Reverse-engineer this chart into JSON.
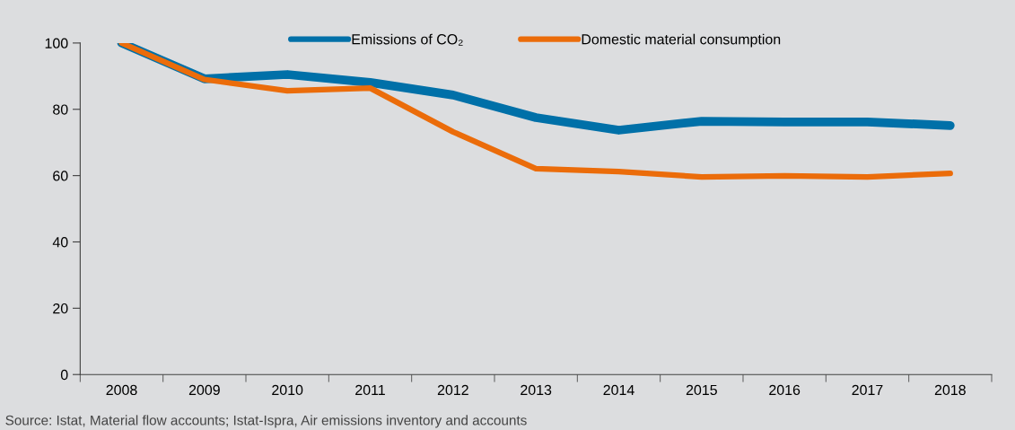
{
  "chart_data": {
    "type": "line",
    "categories": [
      "2008",
      "2009",
      "2010",
      "2011",
      "2012",
      "2013",
      "2014",
      "2015",
      "2016",
      "2017",
      "2018"
    ],
    "series": [
      {
        "name": "Emissions of CO₂",
        "color": "#0070a8",
        "values": [
          100,
          89.2,
          90.5,
          88.1,
          84.3,
          77.5,
          73.7,
          76.4,
          76.2,
          76.2,
          75.1
        ]
      },
      {
        "name": "Domestic material consumption",
        "color": "#eb6c0a",
        "values": [
          100,
          89,
          85.6,
          86.4,
          73.2,
          62.1,
          61.2,
          59.6,
          59.9,
          59.6,
          60.7
        ]
      }
    ],
    "ylim": [
      0,
      100
    ],
    "yticks": [
      0,
      20,
      40,
      60,
      80,
      100
    ],
    "grid": false,
    "legend": "top",
    "marker": "none",
    "line_style": "solid",
    "annotations": [
      "Source: Istat, Material flow accounts; Istat-Ispra, Air emissions inventory and accounts"
    ]
  }
}
